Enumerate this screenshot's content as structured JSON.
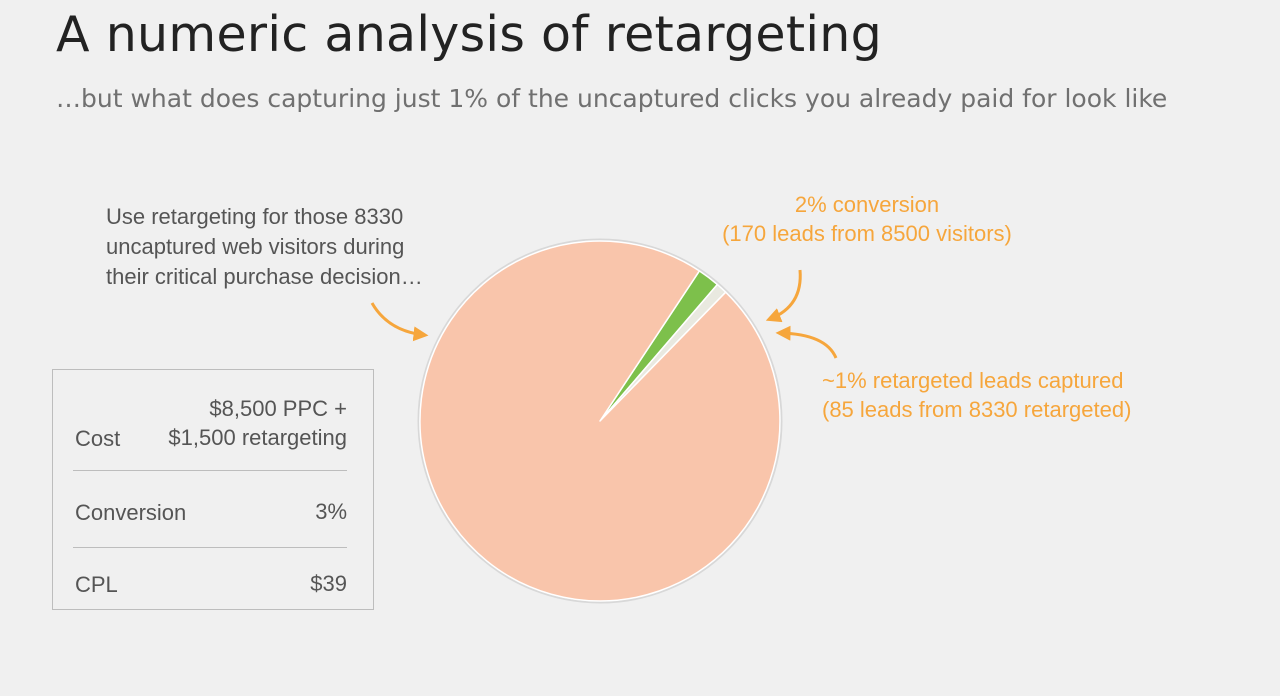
{
  "header": {
    "title": "A numeric analysis of retargeting",
    "subtitle": "…but what does capturing just 1% of the uncaptured clicks you already paid for look like"
  },
  "note": "Use retargeting for those 8330\nuncaptured web visitors during\ntheir critical purchase decision…",
  "chart_data": {
    "type": "pie",
    "title": "",
    "slices": [
      {
        "label": "2% conversion",
        "value": 2,
        "color": "#7dc04b"
      },
      {
        "label": "~1% retargeted leads captured",
        "value": 1,
        "color": "#e9e9e0"
      },
      {
        "label": "Uncaptured visitors",
        "value": 97,
        "color": "#f9c5ab"
      }
    ],
    "annotations": {
      "conversion": [
        "2% conversion",
        "(170 leads from 8500 visitors)"
      ],
      "retargeted": [
        "~1% retargeted leads captured",
        "(85 leads from 8330 retargeted)"
      ]
    },
    "colors": {
      "annotation": "#f6a63c",
      "arrow": "#f6a63c"
    }
  },
  "stats": {
    "cost_label": "Cost",
    "cost_value_line1": "$8,500 PPC +",
    "cost_value_line2": "$1,500 retargeting",
    "conversion_label": "Conversion",
    "conversion_value": "3%",
    "cpl_label": "CPL",
    "cpl_value": "$39"
  }
}
